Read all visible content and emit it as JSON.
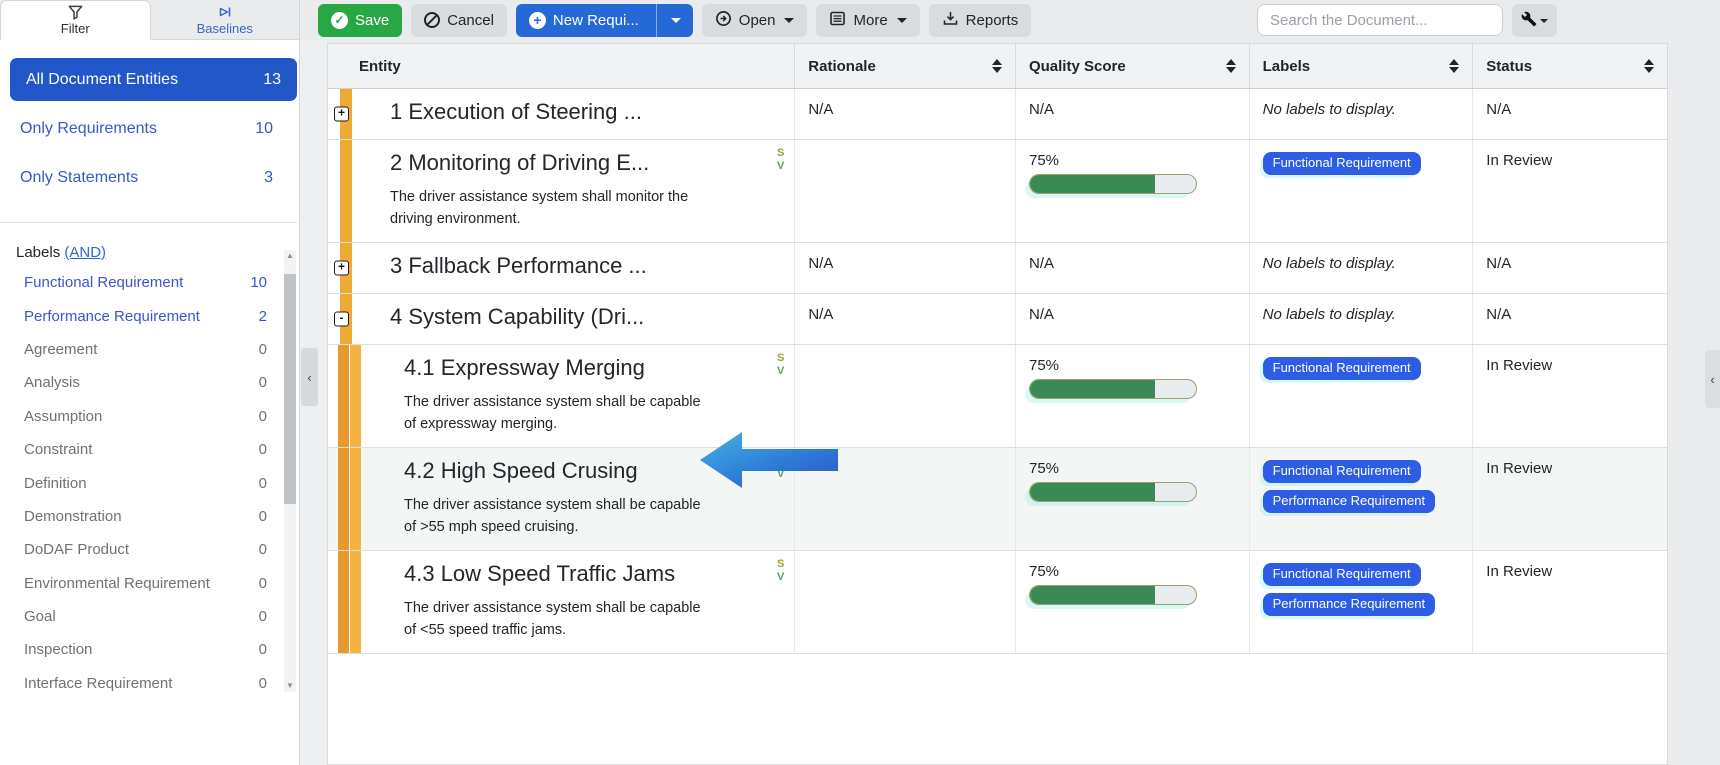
{
  "colors": {
    "accent_blue": "#2257c9",
    "link_blue": "#3a57c7",
    "badge_blue": "#2d5ce5",
    "toolbar_blue": "#2569d6",
    "save_green": "#28a745",
    "quality_green": "#3a8a56",
    "tree_amber": "#edaa35",
    "muted_gray": "#6d7277"
  },
  "sidebar": {
    "tabs": [
      {
        "label": "Filter",
        "active": true
      },
      {
        "label": "Baselines",
        "active": false
      }
    ],
    "filters": [
      {
        "label": "All Document Entities",
        "count": 13,
        "selected": true
      },
      {
        "label": "Only Requirements",
        "count": 10,
        "selected": false
      },
      {
        "label": "Only Statements",
        "count": 3,
        "selected": false
      }
    ],
    "labels_header": {
      "prefix": "Labels",
      "operator_link": "(AND)"
    },
    "labels": [
      {
        "name": "Functional Requirement",
        "count": 10,
        "active": true
      },
      {
        "name": "Performance Requirement",
        "count": 2,
        "active": true
      },
      {
        "name": "Agreement",
        "count": 0,
        "active": false
      },
      {
        "name": "Analysis",
        "count": 0,
        "active": false
      },
      {
        "name": "Assumption",
        "count": 0,
        "active": false
      },
      {
        "name": "Constraint",
        "count": 0,
        "active": false
      },
      {
        "name": "Definition",
        "count": 0,
        "active": false
      },
      {
        "name": "Demonstration",
        "count": 0,
        "active": false
      },
      {
        "name": "DoDAF Product",
        "count": 0,
        "active": false
      },
      {
        "name": "Environmental Requirement",
        "count": 0,
        "active": false
      },
      {
        "name": "Goal",
        "count": 0,
        "active": false
      },
      {
        "name": "Inspection",
        "count": 0,
        "active": false
      },
      {
        "name": "Interface Requirement",
        "count": 0,
        "active": false
      }
    ]
  },
  "toolbar": {
    "save_label": "Save",
    "cancel_label": "Cancel",
    "new_requirement_label": "New Requi...",
    "open_label": "Open",
    "more_label": "More",
    "reports_label": "Reports",
    "search_placeholder": "Search the Document..."
  },
  "table": {
    "columns": [
      {
        "label": "Entity",
        "sortable": false
      },
      {
        "label": "Rationale",
        "sortable": true
      },
      {
        "label": "Quality Score",
        "sortable": true
      },
      {
        "label": "Labels",
        "sortable": true
      },
      {
        "label": "Status",
        "sortable": true
      }
    ],
    "no_labels_text": "No labels to display.",
    "rows": [
      {
        "title": "1 Execution of Steering ...",
        "description": "",
        "level": 1,
        "expander": "+",
        "rationale": "N/A",
        "quality_label": "N/A",
        "quality_value": null,
        "labels": [],
        "status": "N/A",
        "markers": [],
        "hovered": false
      },
      {
        "title": "2 Monitoring of Driving E...",
        "description": "The driver assistance system shall monitor the driving environment.",
        "level": 1,
        "expander": null,
        "rationale": "",
        "quality_label": "75%",
        "quality_value": 75,
        "labels": [
          "Functional Requirement"
        ],
        "status": "In Review",
        "markers": [
          "S",
          "V"
        ],
        "hovered": false
      },
      {
        "title": "3 Fallback Performance ...",
        "description": "",
        "level": 1,
        "expander": "+",
        "rationale": "N/A",
        "quality_label": "N/A",
        "quality_value": null,
        "labels": [],
        "status": "N/A",
        "markers": [],
        "hovered": false
      },
      {
        "title": "4 System Capability (Dri...",
        "description": "",
        "level": 1,
        "expander": "-",
        "rationale": "N/A",
        "quality_label": "N/A",
        "quality_value": null,
        "labels": [],
        "status": "N/A",
        "markers": [],
        "hovered": false
      },
      {
        "title": "4.1 Expressway Merging",
        "description": "The driver assistance system shall be capable of expressway merging.",
        "level": 2,
        "expander": null,
        "rationale": "",
        "quality_label": "75%",
        "quality_value": 75,
        "labels": [
          "Functional Requirement"
        ],
        "status": "In Review",
        "markers": [
          "S",
          "V"
        ],
        "hovered": false
      },
      {
        "title": "4.2 High Speed Crusing",
        "description": "The driver assistance system shall be capable of >55 mph speed cruising.",
        "level": 2,
        "expander": null,
        "rationale": "",
        "quality_label": "75%",
        "quality_value": 75,
        "labels": [
          "Functional Requirement",
          "Performance Requirement"
        ],
        "status": "In Review",
        "markers": [
          "S",
          "V"
        ],
        "hovered": true
      },
      {
        "title": "4.3 Low Speed Traffic Jams",
        "description": "The driver assistance system shall be capable of <55 speed traffic jams.",
        "level": 2,
        "expander": null,
        "rationale": "",
        "quality_label": "75%",
        "quality_value": 75,
        "labels": [
          "Functional Requirement",
          "Performance Requirement"
        ],
        "status": "In Review",
        "markers": [
          "S",
          "V"
        ],
        "hovered": false
      }
    ]
  }
}
